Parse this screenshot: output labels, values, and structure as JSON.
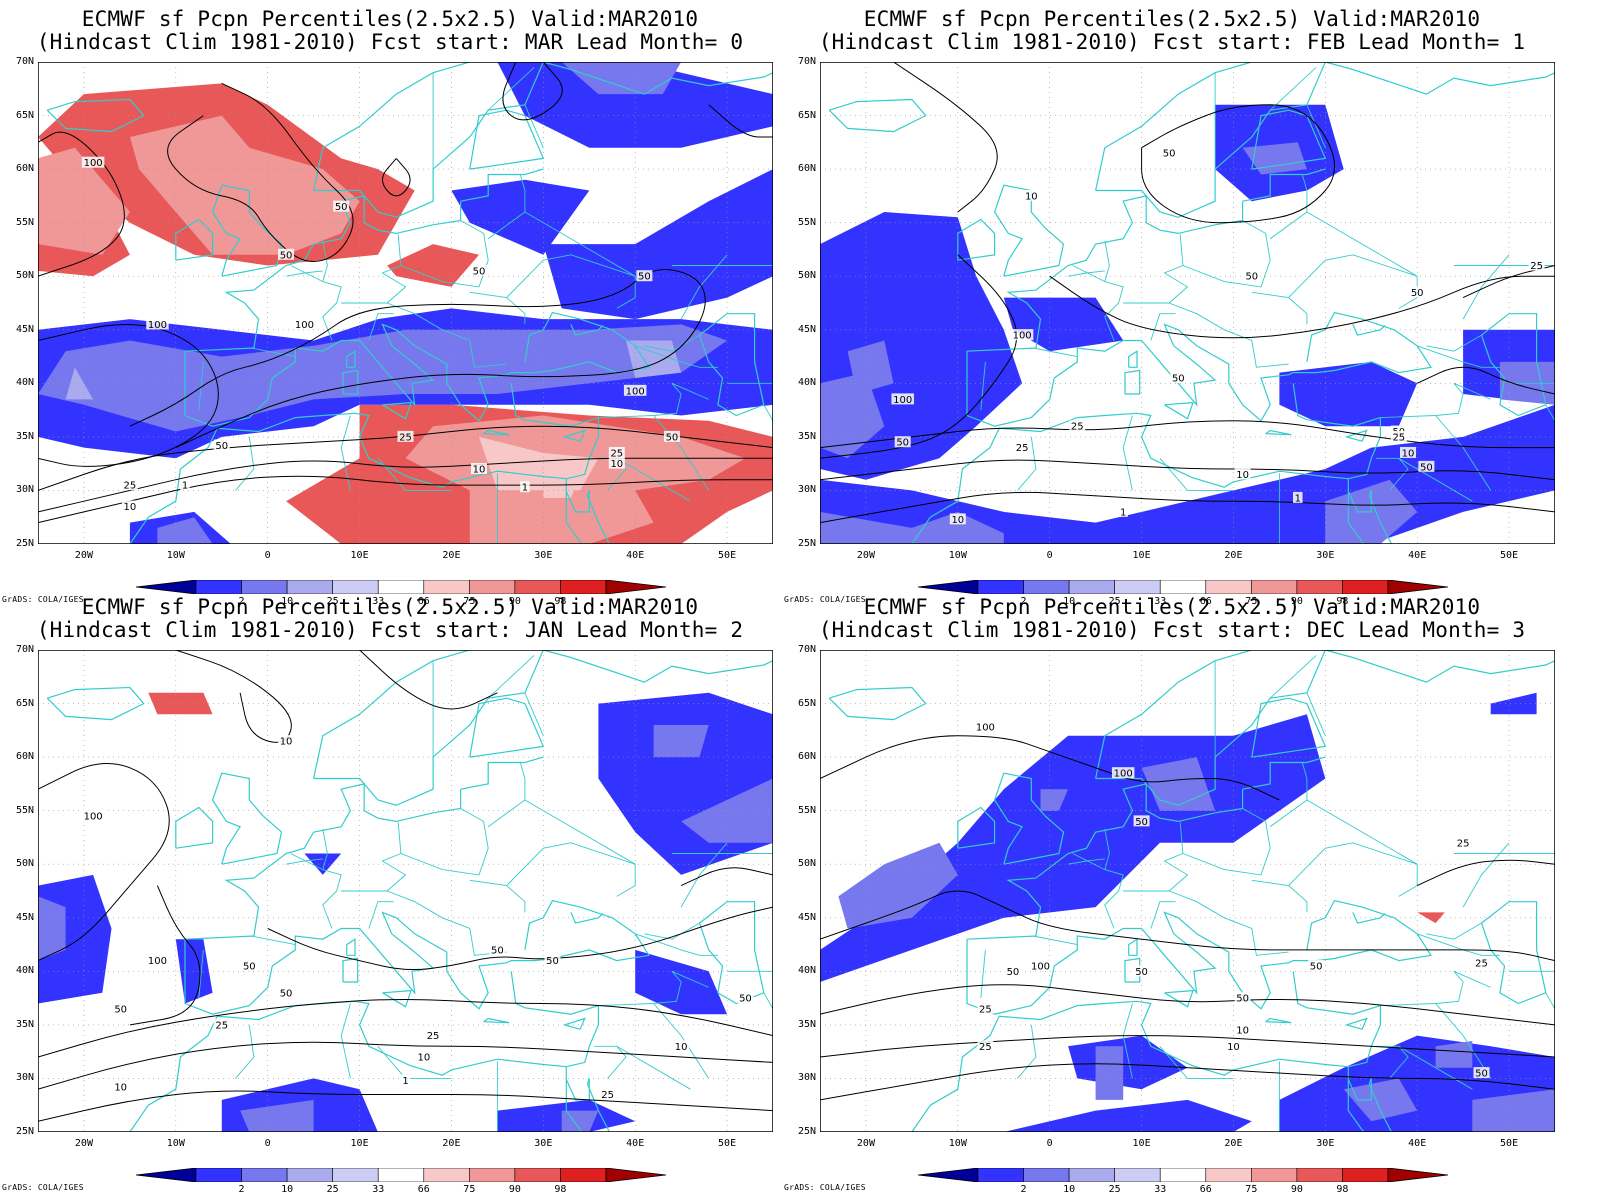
{
  "panels": [
    {
      "title_line1": "ECMWF sf Pcpn Percentiles(2.5x2.5) Valid:MAR2010",
      "title_line2": "(Hindcast Clim 1981-2010) Fcst start: MAR  Lead Month= 0",
      "fcst_start": "MAR",
      "lead_month": 0,
      "contour_labels": [
        "100",
        "50",
        "50",
        "50",
        "50",
        "100",
        "100",
        "100",
        "25",
        "50",
        "25",
        "10",
        "10",
        "1",
        "25",
        "10",
        "50",
        "1"
      ]
    },
    {
      "title_line1": "ECMWF sf Pcpn Percentiles(2.5x2.5) Valid:MAR2010",
      "title_line2": "(Hindcast Clim 1981-2010) Fcst start: FEB  Lead Month= 1",
      "fcst_start": "FEB",
      "lead_month": 1,
      "contour_labels": [
        "50",
        "10",
        "50",
        "25",
        "50",
        "100",
        "50",
        "100",
        "50",
        "25",
        "25",
        "10",
        "1",
        "1",
        "10",
        "50",
        "25",
        "10",
        "50"
      ]
    },
    {
      "title_line1": "ECMWF sf Pcpn Percentiles(2.5x2.5) Valid:MAR2010",
      "title_line2": "(Hindcast Clim 1981-2010) Fcst start: JAN  Lead Month= 2",
      "fcst_start": "JAN",
      "lead_month": 2,
      "contour_labels": [
        "10",
        "100",
        "100",
        "50",
        "50",
        "50",
        "50",
        "50",
        "25",
        "25",
        "10",
        "10",
        "1",
        "10",
        "25",
        "50"
      ]
    },
    {
      "title_line1": "ECMWF sf Pcpn Percentiles(2.5x2.5) Valid:MAR2010",
      "title_line2": "(Hindcast Clim 1981-2010) Fcst start: DEC  Lead Month= 3",
      "fcst_start": "DEC",
      "lead_month": 3,
      "contour_labels": [
        "100",
        "100",
        "50",
        "100",
        "50",
        "50",
        "50",
        "50",
        "25",
        "25",
        "10",
        "25",
        "10",
        "50",
        "25"
      ]
    }
  ],
  "axes": {
    "lat_labels": [
      "70N",
      "65N",
      "60N",
      "55N",
      "50N",
      "45N",
      "40N",
      "35N",
      "30N",
      "25N"
    ],
    "lon_labels": [
      "20W",
      "10W",
      "0",
      "10E",
      "20E",
      "30E",
      "40E",
      "50E"
    ],
    "lon_range": [
      -25,
      55
    ],
    "lat_range": [
      25,
      70
    ]
  },
  "colorbar": {
    "labels": [
      "2",
      "10",
      "25",
      "33",
      "66",
      "75",
      "90",
      "98"
    ],
    "colors": [
      "#000099",
      "#3333ff",
      "#7777ee",
      "#aaaaee",
      "#ccccf5",
      "#ffffff",
      "#f8c8c8",
      "#f09898",
      "#e85858",
      "#e02020",
      "#a00000"
    ]
  },
  "colors": {
    "coast": "#33cccc",
    "contour": "#000000"
  },
  "credit": "GrADS: COLA/IGES"
}
